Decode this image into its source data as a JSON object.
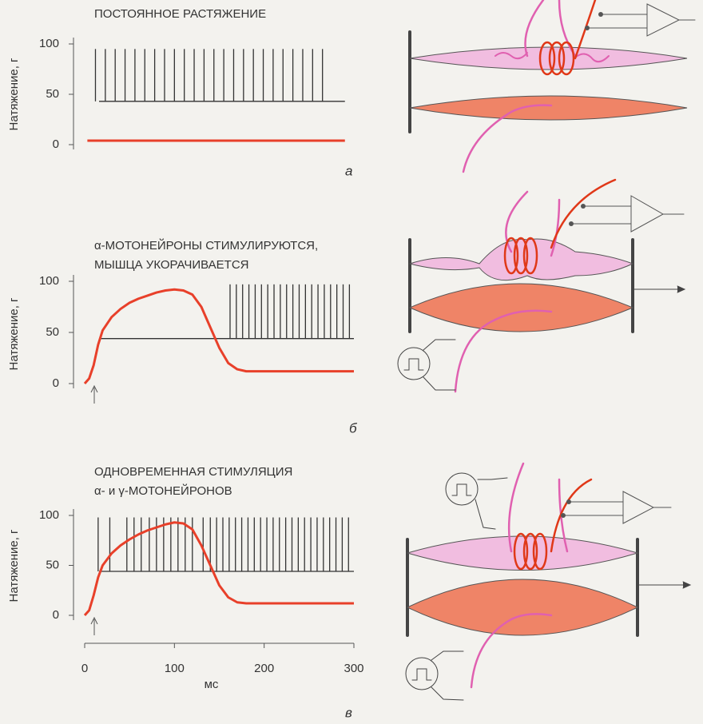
{
  "chart_data": [
    {
      "type": "line",
      "title": [
        "ПОСТОЯННОЕ РАСТЯЖЕНИЕ"
      ],
      "ylabel": "Натяжение, г",
      "panel": "а",
      "xlim": [
        0,
        300
      ],
      "ylim": [
        0,
        100
      ],
      "yticks": [
        0,
        50,
        100
      ],
      "x": [
        3,
        290
      ],
      "series": [
        {
          "color": "#e8402a",
          "values": [
            4,
            4
          ]
        }
      ],
      "spikes": {
        "base": 43,
        "top": 95,
        "x": [
          12,
          23,
          34,
          45,
          56,
          67,
          78,
          89,
          100,
          111,
          122,
          133,
          144,
          155,
          166,
          177,
          188,
          199,
          210,
          221,
          232,
          243,
          254,
          265
        ],
        "base_end": 290
      }
    },
    {
      "type": "line",
      "title": [
        "α-МОТОНЕЙРОНЫ СТИМУЛИРУЮТСЯ,",
        "МЫШЦА УКОРАЧИВАЕТСЯ"
      ],
      "ylabel": "Натяжение, г",
      "panel": "б",
      "xlim": [
        0,
        300
      ],
      "ylim": [
        0,
        100
      ],
      "yticks": [
        0,
        50,
        100
      ],
      "x": [
        0,
        5,
        10,
        15,
        20,
        30,
        40,
        50,
        60,
        70,
        80,
        90,
        100,
        110,
        120,
        130,
        140,
        150,
        160,
        170,
        180,
        190,
        200,
        250,
        300
      ],
      "series": [
        {
          "color": "#e8402a",
          "values": [
            0,
            5,
            18,
            38,
            52,
            65,
            73,
            79,
            83,
            86,
            89,
            91,
            92,
            91,
            87,
            75,
            55,
            35,
            20,
            14,
            12,
            12,
            12,
            12,
            12
          ]
        }
      ],
      "spikes": {
        "base": 44,
        "top": 97,
        "x": [
          162,
          169,
          176,
          183,
          190,
          197,
          204,
          211,
          218,
          225,
          232,
          239,
          246,
          253,
          260,
          267,
          274,
          281,
          288,
          295
        ],
        "base_end": 300
      }
    },
    {
      "type": "line",
      "title": [
        "ОДНОВРЕМЕННАЯ СТИМУЛЯЦИЯ",
        "α- и γ-МОТОНЕЙРОНОВ"
      ],
      "ylabel": "Натяжение, г",
      "panel": "в",
      "xlabel": "мс",
      "xlim": [
        0,
        300
      ],
      "xticks": [
        0,
        100,
        200,
        300
      ],
      "ylim": [
        0,
        100
      ],
      "yticks": [
        0,
        50,
        100
      ],
      "x": [
        0,
        5,
        10,
        15,
        20,
        30,
        40,
        50,
        60,
        70,
        80,
        90,
        100,
        110,
        120,
        130,
        140,
        150,
        160,
        170,
        180,
        190,
        200,
        250,
        300
      ],
      "series": [
        {
          "color": "#e8402a",
          "values": [
            0,
            5,
            20,
            38,
            50,
            62,
            70,
            76,
            81,
            85,
            88,
            91,
            93,
            92,
            86,
            70,
            50,
            30,
            18,
            13,
            12,
            12,
            12,
            12,
            12
          ]
        }
      ],
      "spikes": {
        "base": 44,
        "top": 98,
        "x": [
          15,
          28,
          47,
          55,
          63,
          72,
          80,
          88,
          96,
          104,
          112,
          120,
          132,
          140,
          147,
          154,
          161,
          168,
          175,
          182,
          189,
          196,
          203,
          210,
          217,
          224,
          231,
          238,
          245,
          252,
          259,
          266,
          273,
          280,
          287,
          294
        ],
        "base_end": 300
      }
    }
  ]
}
